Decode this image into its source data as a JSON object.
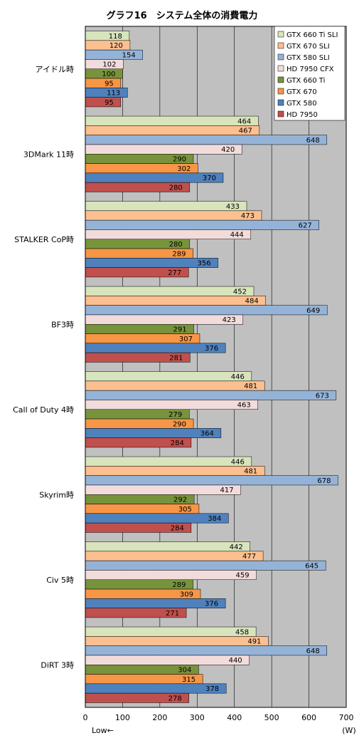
{
  "chart_data": {
    "type": "bar",
    "orientation": "horizontal",
    "title": "グラフ16　システム全体の消費電力",
    "xlabel": "",
    "ylabel": "",
    "unit_label": "(W)",
    "low_label": "Low←",
    "xlim": [
      0,
      700
    ],
    "xticks": [
      0,
      100,
      200,
      300,
      400,
      500,
      600,
      700
    ],
    "grid": true,
    "legend_position": "top-right",
    "categories": [
      "アイドル時",
      "3DMark 11時",
      "STALKER  CoP時",
      "BF3時",
      "Call of Duty 4時",
      "Skyrim時",
      "Civ 5時",
      "DiRT 3時"
    ],
    "series": [
      {
        "name": "GTX 660 Ti SLI",
        "color": "#d8e4bc",
        "values": [
          118,
          464,
          433,
          452,
          446,
          446,
          442,
          458
        ]
      },
      {
        "name": "GTX 670 SLI",
        "color": "#fcbf8f",
        "values": [
          120,
          467,
          473,
          484,
          481,
          481,
          477,
          491
        ]
      },
      {
        "name": "GTX 580 SLI",
        "color": "#95b3d7",
        "values": [
          154,
          648,
          627,
          649,
          673,
          678,
          645,
          648
        ]
      },
      {
        "name": "HD 7950 CFX",
        "color": "#f2dcdb",
        "values": [
          102,
          420,
          444,
          423,
          463,
          417,
          459,
          440
        ]
      },
      {
        "name": "GTX 660 Ti",
        "color": "#77933c",
        "values": [
          100,
          290,
          280,
          291,
          279,
          292,
          289,
          304
        ]
      },
      {
        "name": "GTX 670",
        "color": "#f79646",
        "values": [
          95,
          302,
          289,
          307,
          290,
          305,
          309,
          315
        ]
      },
      {
        "name": "GTX 580",
        "color": "#4f81bd",
        "values": [
          113,
          370,
          356,
          376,
          364,
          384,
          376,
          378
        ]
      },
      {
        "name": "HD 7950",
        "color": "#c0504d",
        "values": [
          95,
          280,
          277,
          281,
          284,
          284,
          271,
          278
        ]
      }
    ]
  },
  "colors": {
    "plot_background": "#c0c0c0",
    "gridline": "#000000",
    "bar_outline": "#000000"
  }
}
